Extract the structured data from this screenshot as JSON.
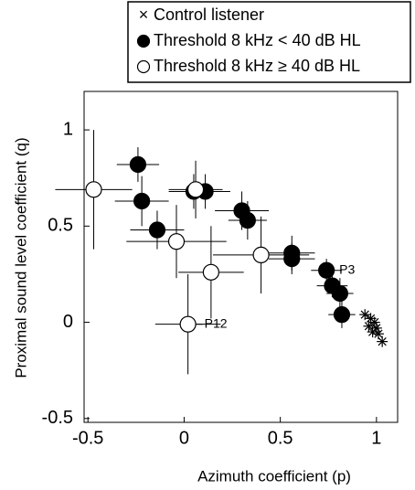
{
  "chart_data": {
    "type": "scatter",
    "xlabel": "Azimuth coefficient (p)",
    "ylabel": "Proximal sound level coefficient (q)",
    "xlim": [
      -0.52,
      1.11
    ],
    "ylim": [
      -0.52,
      1.2
    ],
    "xticks": [
      -0.5,
      0,
      0.5,
      1
    ],
    "yticks": [
      -0.5,
      0,
      0.5,
      1
    ],
    "series": [
      {
        "name": "Control listener",
        "marker": "asterisk",
        "color": "#000000",
        "x": [
          0.94,
          0.96,
          0.97,
          0.98,
          0.99,
          1.0,
          1.01,
          1.03
        ],
        "values": [
          0.04,
          -0.02,
          0.02,
          -0.05,
          0.0,
          -0.03,
          -0.06,
          -0.1
        ]
      },
      {
        "name": "Threshold 8 kHz < 40 dB HL",
        "marker": "filled",
        "color": "#000000",
        "x": [
          -0.24,
          -0.22,
          -0.14,
          0.05,
          0.11,
          0.3,
          0.33,
          0.56,
          0.56,
          0.74,
          0.77,
          0.81,
          0.82
        ],
        "values": [
          0.82,
          0.63,
          0.48,
          0.68,
          0.68,
          0.58,
          0.53,
          0.36,
          0.33,
          0.27,
          0.19,
          0.15,
          0.04
        ],
        "xerr": [
          0.11,
          0.14,
          0.14,
          0.13,
          0.13,
          0.14,
          0.1,
          0.12,
          0.12,
          0.08,
          0.08,
          0.07,
          0.07
        ],
        "yerr": [
          0.09,
          0.13,
          0.1,
          0.09,
          0.09,
          0.1,
          0.1,
          0.09,
          0.08,
          0.06,
          0.06,
          0.08,
          0.07
        ]
      },
      {
        "name": "Threshold 8 kHz ≥ 40 dB HL",
        "marker": "open",
        "color": "#000000",
        "x": [
          -0.47,
          -0.04,
          0.14,
          0.4,
          0.02,
          0.06
        ],
        "values": [
          0.69,
          0.42,
          0.26,
          0.35,
          -0.01,
          0.69
        ],
        "xerr": [
          0.2,
          0.26,
          0.17,
          0.25,
          0.17,
          0.14
        ],
        "yerr": [
          0.31,
          0.19,
          0.24,
          0.2,
          0.26,
          0.15
        ]
      }
    ],
    "annotations": [
      "P3",
      "P12"
    ]
  }
}
